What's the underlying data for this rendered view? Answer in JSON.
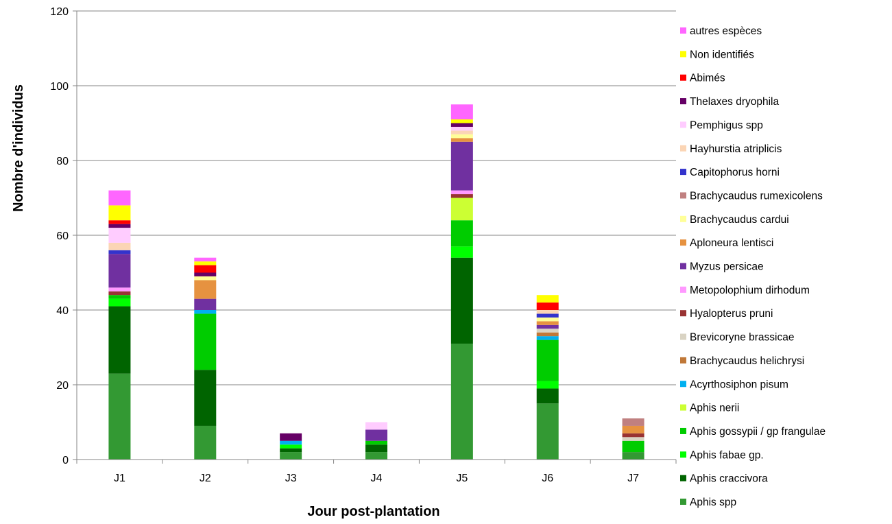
{
  "chart_data": {
    "type": "bar",
    "stacked": true,
    "xlabel": "Jour post-plantation",
    "ylabel": "Nombre d'individus",
    "ylim": [
      0,
      120
    ],
    "yticks": [
      0,
      20,
      40,
      60,
      80,
      100,
      120
    ],
    "grid": true,
    "legend_position": "right",
    "categories": [
      "J1",
      "J2",
      "J3",
      "J4",
      "J5",
      "J6",
      "J7"
    ],
    "series": [
      {
        "name": "Aphis spp",
        "color": "#339933",
        "values": [
          23,
          9,
          2,
          2,
          31,
          15,
          2
        ]
      },
      {
        "name": "Aphis craccivora",
        "color": "#006400",
        "values": [
          18,
          15,
          1,
          2,
          23,
          4,
          0
        ]
      },
      {
        "name": "Aphis fabae gp.",
        "color": "#00ff00",
        "values": [
          2,
          0,
          1,
          0,
          3,
          2,
          0
        ]
      },
      {
        "name": "Aphis gossypii / gp frangulae",
        "color": "#00cc00",
        "values": [
          1,
          15,
          0,
          1,
          7,
          11,
          3
        ]
      },
      {
        "name": "Aphis nerii",
        "color": "#ccff33",
        "values": [
          0,
          0,
          0,
          0,
          6,
          0,
          0
        ]
      },
      {
        "name": "Acyrthosiphon pisum",
        "color": "#00b0f0",
        "values": [
          0,
          1,
          1,
          0,
          0,
          1,
          0
        ]
      },
      {
        "name": "Brachycaudus helichrysi",
        "color": "#c07838",
        "values": [
          0,
          0,
          0,
          0,
          0,
          1,
          0
        ]
      },
      {
        "name": "Brevicoryne brassicae",
        "color": "#d9d3c3",
        "values": [
          0,
          0,
          0,
          0,
          0,
          1,
          1
        ]
      },
      {
        "name": "Hyalopterus pruni",
        "color": "#993333",
        "values": [
          1,
          0,
          0,
          0,
          1,
          0,
          1
        ]
      },
      {
        "name": "Metopolophium dirhodum",
        "color": "#ff99ff",
        "values": [
          1,
          0,
          0,
          0,
          1,
          0,
          0
        ]
      },
      {
        "name": "Myzus persicae",
        "color": "#7030a0",
        "values": [
          9,
          3,
          0,
          3,
          13,
          1,
          0
        ]
      },
      {
        "name": "Aploneura lentisci",
        "color": "#e69240",
        "values": [
          0,
          5,
          0,
          0,
          1,
          1,
          2
        ]
      },
      {
        "name": "Brachycaudus cardui",
        "color": "#ffff99",
        "values": [
          0,
          1,
          0,
          0,
          1,
          1,
          0
        ]
      },
      {
        "name": "Brachycaudus rumexicolens",
        "color": "#c08080",
        "values": [
          0,
          0,
          0,
          0,
          0,
          0,
          2
        ]
      },
      {
        "name": "Capitophorus horni",
        "color": "#3333cc",
        "values": [
          1,
          0,
          0,
          0,
          0,
          1,
          0
        ]
      },
      {
        "name": "Hayhurstia atriplicis",
        "color": "#fbd5b5",
        "values": [
          2,
          0,
          0,
          0,
          1,
          1,
          0
        ]
      },
      {
        "name": "Pemphigus spp",
        "color": "#ffccff",
        "values": [
          4,
          0,
          0,
          2,
          1,
          0,
          0
        ]
      },
      {
        "name": "Thelaxes dryophila",
        "color": "#660066",
        "values": [
          1,
          1,
          2,
          0,
          1,
          0,
          0
        ]
      },
      {
        "name": "Abimés",
        "color": "#ff0000",
        "values": [
          1,
          2,
          0,
          0,
          0,
          2,
          0
        ]
      },
      {
        "name": "Non identifiés",
        "color": "#ffff00",
        "values": [
          4,
          1,
          0,
          0,
          1,
          2,
          0
        ]
      },
      {
        "name": "autres espèces",
        "color": "#ff66ff",
        "values": [
          4,
          1,
          0,
          0,
          4,
          0,
          0
        ]
      }
    ]
  }
}
